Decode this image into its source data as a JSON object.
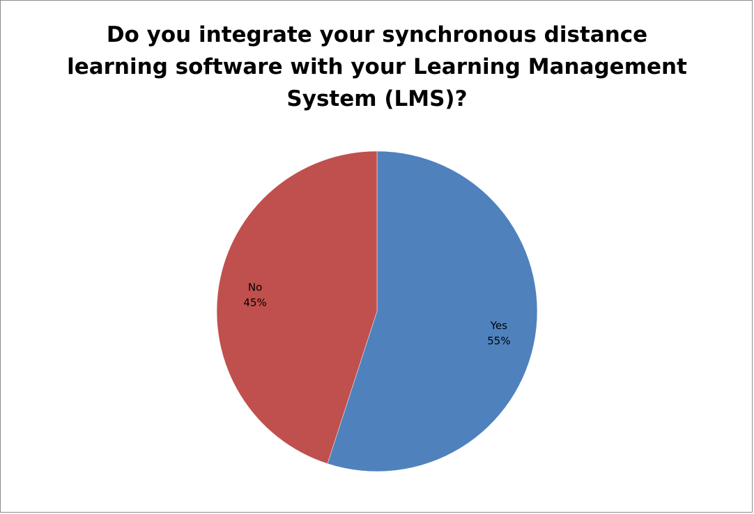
{
  "chart_data": {
    "type": "pie",
    "title": "Do you integrate your synchronous distance learning software with your Learning Management System (LMS)?",
    "slices": [
      {
        "label": "Yes",
        "value": 55,
        "value_label": "55%",
        "color": "#4f81bd"
      },
      {
        "label": "No",
        "value": 45,
        "value_label": "45%",
        "color": "#c0504d"
      }
    ],
    "start": "12 o'clock",
    "direction": "clockwise",
    "legend": "none",
    "data_labels": "category and percentage"
  }
}
